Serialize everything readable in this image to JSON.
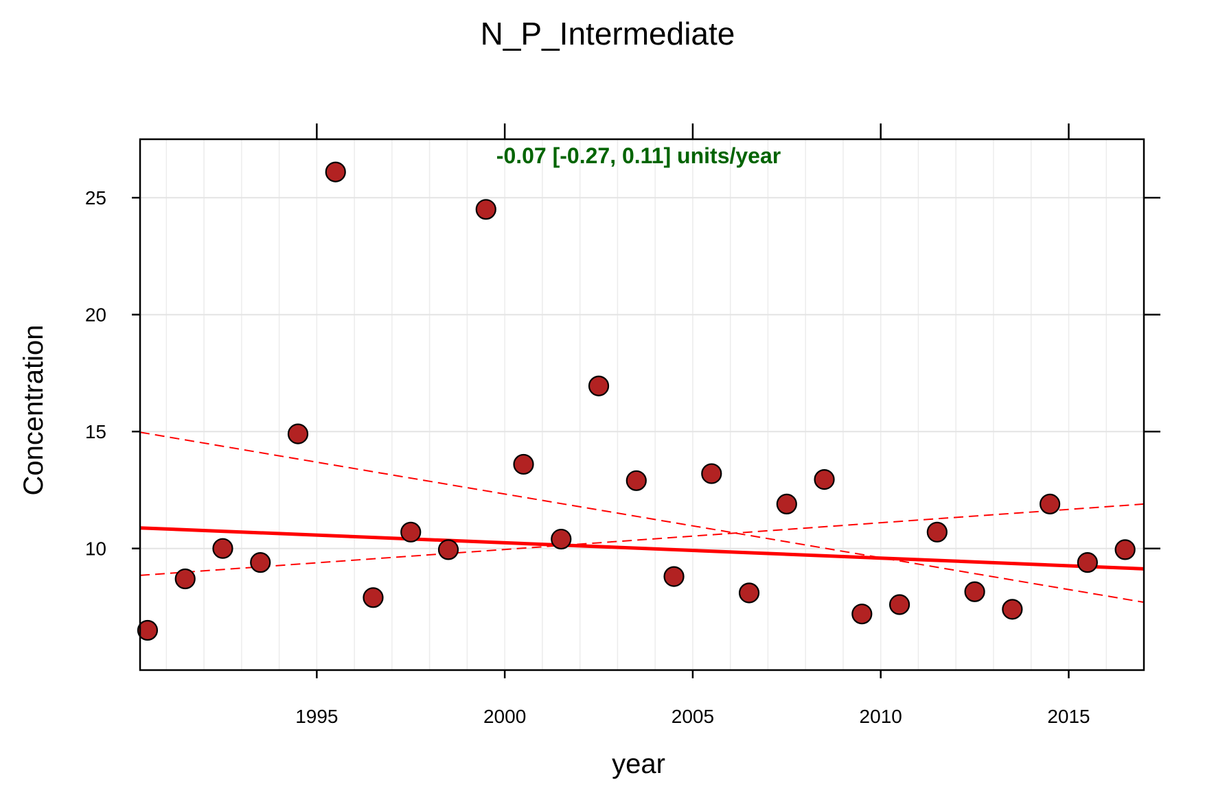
{
  "chart_data": {
    "type": "scatter",
    "title": "N_P_Intermediate",
    "xlabel": "year",
    "ylabel": "Concentration",
    "xlim": [
      1990.3,
      2017
    ],
    "ylim": [
      4.8,
      27.5
    ],
    "x_ticks": [
      1995,
      2000,
      2005,
      2010,
      2015
    ],
    "x_tick_labels": [
      "1995",
      "2000",
      "2005",
      "2010",
      "2015"
    ],
    "y_ticks": [
      10,
      15,
      20,
      25
    ],
    "y_tick_labels": [
      "10",
      "15",
      "20",
      "25"
    ],
    "x_minor_grid_step": 1,
    "grid": true,
    "annotation": "-0.07 [-0.27, 0.11] units/year",
    "annotation_color": "#006400",
    "point_fill": "#b22222",
    "point_stroke": "#000000",
    "trend_color": "#ff0000",
    "points": [
      {
        "x": 1990.5,
        "y": 6.5
      },
      {
        "x": 1991.5,
        "y": 8.7
      },
      {
        "x": 1992.5,
        "y": 10.0
      },
      {
        "x": 1993.5,
        "y": 9.4
      },
      {
        "x": 1994.5,
        "y": 14.9
      },
      {
        "x": 1995.5,
        "y": 26.1
      },
      {
        "x": 1996.5,
        "y": 7.9
      },
      {
        "x": 1997.5,
        "y": 10.7
      },
      {
        "x": 1998.5,
        "y": 9.95
      },
      {
        "x": 1999.5,
        "y": 24.5
      },
      {
        "x": 2000.5,
        "y": 13.6
      },
      {
        "x": 2001.5,
        "y": 10.4
      },
      {
        "x": 2002.5,
        "y": 16.95
      },
      {
        "x": 2003.5,
        "y": 12.9
      },
      {
        "x": 2004.5,
        "y": 8.8
      },
      {
        "x": 2005.5,
        "y": 13.2
      },
      {
        "x": 2006.5,
        "y": 8.1
      },
      {
        "x": 2007.5,
        "y": 11.9
      },
      {
        "x": 2008.5,
        "y": 12.95
      },
      {
        "x": 2009.5,
        "y": 7.2
      },
      {
        "x": 2010.5,
        "y": 7.6
      },
      {
        "x": 2011.5,
        "y": 10.7
      },
      {
        "x": 2012.5,
        "y": 8.15
      },
      {
        "x": 2013.5,
        "y": 7.4
      },
      {
        "x": 2014.5,
        "y": 11.9
      },
      {
        "x": 2015.5,
        "y": 9.4
      },
      {
        "x": 2016.5,
        "y": 9.95
      }
    ],
    "trend": {
      "x": [
        1990.3,
        2017
      ],
      "y": [
        10.88,
        9.13
      ]
    },
    "ci_lower": {
      "x": [
        1990.3,
        2017
      ],
      "y": [
        8.85,
        11.9
      ]
    },
    "ci_upper": {
      "x": [
        1990.3,
        2017
      ],
      "y": [
        14.97,
        7.7
      ]
    }
  }
}
